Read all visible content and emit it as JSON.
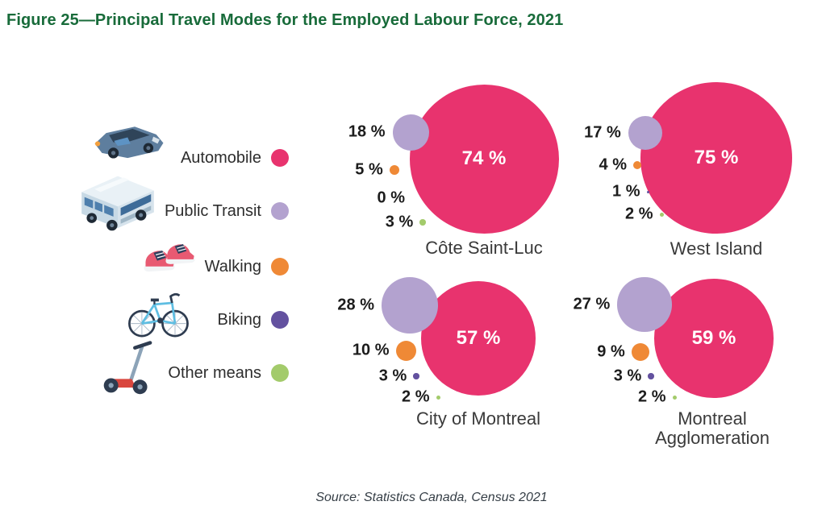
{
  "title": "Figure 25—Principal Travel Modes for the Employed Labour Force, 2021",
  "source": "Source: Statistics Canada, Census 2021",
  "colors": {
    "title_green": "#186B3A",
    "automobile": "#E8336E",
    "public_transit": "#B3A2CF",
    "walking": "#EF8936",
    "biking": "#63519F",
    "other_means": "#A3CB6B"
  },
  "legend": {
    "items": [
      {
        "label": "Automobile",
        "icon": "car-icon",
        "color": "#E8336E"
      },
      {
        "label": "Public Transit",
        "icon": "bus-icon",
        "color": "#B3A2CF"
      },
      {
        "label": "Walking",
        "icon": "sneakers-icon",
        "color": "#EF8936"
      },
      {
        "label": "Biking",
        "icon": "bicycle-icon",
        "color": "#63519F"
      },
      {
        "label": "Other means",
        "icon": "scooter-icon",
        "color": "#A3CB6B"
      }
    ]
  },
  "chart_data": {
    "type": "bubble",
    "title": "Principal Travel Modes for the Employed Labour Force, 2021",
    "unit": "%",
    "value_suffix": " %",
    "legend_position": "left",
    "radius_px_per_percent": 1.25,
    "modes": [
      "Automobile",
      "Public Transit",
      "Walking",
      "Biking",
      "Other means"
    ],
    "colors": [
      "#E8336E",
      "#B3A2CF",
      "#EF8936",
      "#63519F",
      "#A3CB6B"
    ],
    "regions": [
      {
        "name": "Côte Saint-Luc",
        "values": [
          74,
          18,
          5,
          0,
          3
        ]
      },
      {
        "name": "West Island",
        "values": [
          75,
          17,
          4,
          1,
          2
        ]
      },
      {
        "name": "City of Montreal",
        "values": [
          57,
          28,
          10,
          3,
          2
        ]
      },
      {
        "name": "Montreal Agglomeration",
        "values": [
          59,
          27,
          9,
          3,
          2
        ]
      }
    ]
  }
}
